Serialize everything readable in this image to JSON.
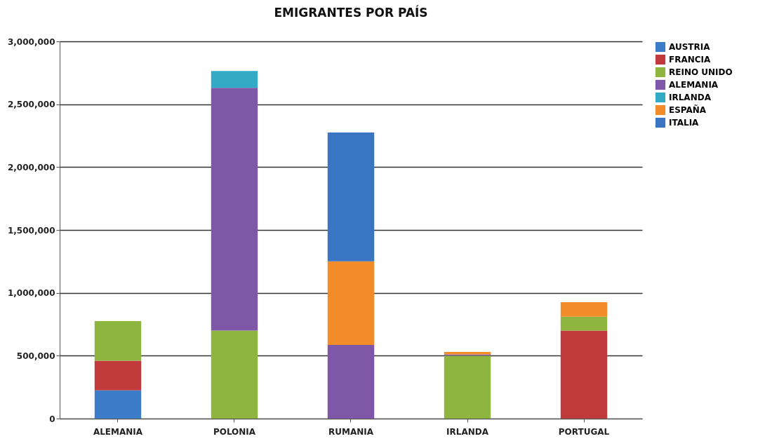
{
  "chart_data": {
    "type": "bar",
    "title": "EMIGRANTES POR PAÍS",
    "categories": [
      "ALEMANIA",
      "POLONIA",
      "RUMANIA",
      "IRLANDA",
      "PORTUGAL"
    ],
    "stacked": true,
    "series": [
      {
        "name": "AUSTRIA",
        "color": "#3d7cc9",
        "values": [
          225000,
          0,
          0,
          0,
          0
        ]
      },
      {
        "name": "FRANCIA",
        "color": "#c0393b",
        "values": [
          235000,
          0,
          0,
          0,
          700000
        ]
      },
      {
        "name": "REINO UNIDO",
        "color": "#8db53f",
        "values": [
          315000,
          700000,
          0,
          500000,
          110000
        ]
      },
      {
        "name": "ALEMANIA",
        "color": "#7e57a8",
        "values": [
          0,
          1930000,
          585000,
          10000,
          0
        ]
      },
      {
        "name": "IRLANDA",
        "color": "#33aac5",
        "values": [
          0,
          135000,
          0,
          0,
          0
        ]
      },
      {
        "name": "ESPAÑA",
        "color": "#f28c28",
        "values": [
          0,
          0,
          665000,
          20000,
          115000
        ]
      },
      {
        "name": "ITALIA",
        "color": "#3a75c4",
        "values": [
          0,
          0,
          1025000,
          0,
          0
        ]
      }
    ],
    "ylim": [
      0,
      3000000
    ],
    "yticks": [
      {
        "value": 0,
        "label": "0"
      },
      {
        "value": 500000,
        "label": "500,000"
      },
      {
        "value": 1000000,
        "label": "1,000,000"
      },
      {
        "value": 1500000,
        "label": "1,500,000"
      },
      {
        "value": 2000000,
        "label": "2,000,000"
      },
      {
        "value": 2500000,
        "label": "2,500,000"
      },
      {
        "value": 3000000,
        "label": "3,000,000"
      }
    ],
    "grid": "y",
    "legend": "right"
  }
}
